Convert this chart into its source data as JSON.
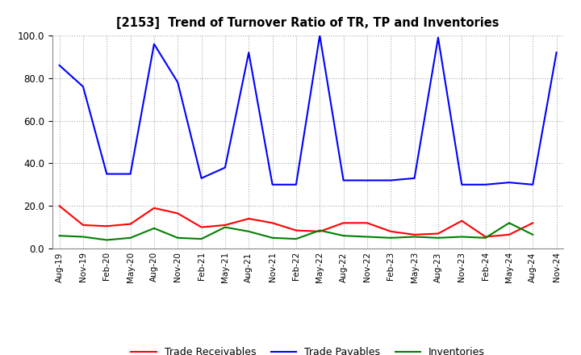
{
  "title": "[2153]  Trend of Turnover Ratio of TR, TP and Inventories",
  "xlabels": [
    "Aug-19",
    "Nov-19",
    "Feb-20",
    "May-20",
    "Aug-20",
    "Nov-20",
    "Feb-21",
    "May-21",
    "Aug-21",
    "Nov-21",
    "Feb-22",
    "May-22",
    "Aug-22",
    "Nov-22",
    "Feb-23",
    "May-23",
    "Aug-23",
    "Nov-23",
    "Feb-24",
    "May-24",
    "Aug-24",
    "Nov-24"
  ],
  "trade_receivables": [
    20.0,
    11.0,
    10.5,
    11.5,
    19.0,
    16.5,
    10.0,
    11.0,
    14.0,
    12.0,
    8.5,
    8.0,
    12.0,
    12.0,
    8.0,
    6.5,
    7.0,
    13.0,
    5.5,
    6.5,
    12.0,
    null
  ],
  "trade_payables": [
    86.0,
    76.0,
    35.0,
    35.0,
    96.0,
    78.0,
    33.0,
    38.0,
    92.0,
    30.0,
    30.0,
    100.0,
    32.0,
    32.0,
    32.0,
    33.0,
    99.0,
    30.0,
    30.0,
    31.0,
    30.0,
    92.0
  ],
  "inventories": [
    6.0,
    5.5,
    4.0,
    5.0,
    9.5,
    5.0,
    4.5,
    10.0,
    8.0,
    5.0,
    4.5,
    8.5,
    6.0,
    5.5,
    5.0,
    5.5,
    5.0,
    5.5,
    5.0,
    12.0,
    6.5,
    null
  ],
  "ylim": [
    0.0,
    100.0
  ],
  "yticks": [
    0.0,
    20.0,
    40.0,
    60.0,
    80.0,
    100.0
  ],
  "tr_color": "#ff0000",
  "tp_color": "#0000ff",
  "inv_color": "#008000",
  "background_color": "#ffffff",
  "grid_color": "#aaaaaa",
  "legend_tr": "Trade Receivables",
  "legend_tp": "Trade Payables",
  "legend_inv": "Inventories"
}
